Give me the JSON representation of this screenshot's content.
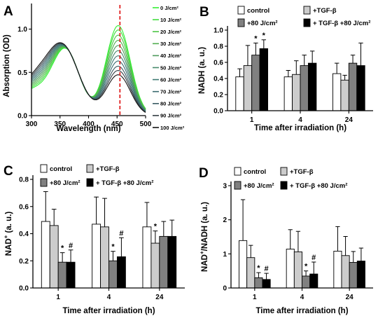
{
  "chart_data": [
    {
      "panel": "A",
      "type": "line",
      "xlabel": "Wavelength (nm)",
      "ylabel": "Absorption (OD)",
      "xlim": [
        300,
        500
      ],
      "ylim": [
        0,
        1.15
      ],
      "xticks": [
        300,
        350,
        400,
        450,
        500
      ],
      "yticks": [
        0.0,
        0.5,
        1.0
      ],
      "ytick_labels": [
        "0.0",
        "0.5",
        "1.0"
      ],
      "marker_line": {
        "x": 455,
        "color": "#e02020",
        "style": "dashed"
      },
      "peak1": {
        "x": 355,
        "y": 0.78
      },
      "peak2_position": 452,
      "peak2_amplitudes": [
        1.04,
        0.99,
        0.93,
        0.87,
        0.81,
        0.75,
        0.69,
        0.63,
        0.57,
        0.52,
        0.47
      ],
      "series": [
        {
          "name": "0 J/cm²",
          "color": "#33ee33"
        },
        {
          "name": "10 J/cm²",
          "color": "#40dc3c"
        },
        {
          "name": "20 J/cm²",
          "color": "#4cc545"
        },
        {
          "name": "30 J/cm²",
          "color": "#52ae50"
        },
        {
          "name": "40 J/cm²",
          "color": "#4f9b5c"
        },
        {
          "name": "50 J/cm²",
          "color": "#468a6b"
        },
        {
          "name": "60 J/cm²",
          "color": "#3f7a73"
        },
        {
          "name": "70 J/cm²",
          "color": "#3b6b70"
        },
        {
          "name": "80 J/cm²",
          "color": "#3a5b63"
        },
        {
          "name": "90 J/cm²",
          "color": "#333e44"
        },
        {
          "name": "100 J/cm²",
          "color": "#141414"
        }
      ]
    },
    {
      "panel": "B",
      "type": "bar",
      "ylabel": "NADH (a. u.)",
      "xlabel": "Time after irradiation (h)",
      "categories": [
        "1",
        "4",
        "24"
      ],
      "ylim": [
        0,
        1.0
      ],
      "yticks": [
        0,
        0.2,
        0.4,
        0.6,
        0.8,
        1.0
      ],
      "ytick_labels": [
        "0.0",
        "0.2",
        "0.4",
        "0.6",
        "0.8",
        "1.0"
      ],
      "series": [
        {
          "name": "control",
          "color": "#ffffff",
          "values": [
            0.42,
            0.42,
            0.46
          ],
          "errors": [
            0.1,
            0.08,
            0.13
          ]
        },
        {
          "name": "+TGF-β",
          "color": "#cccccc",
          "values": [
            0.56,
            0.45,
            0.38
          ],
          "errors": [
            0.25,
            0.17,
            0.06
          ]
        },
        {
          "name": "+80 J/cm²",
          "color": "#808080",
          "values": [
            0.69,
            0.56,
            0.59
          ],
          "errors": [
            0.15,
            0.13,
            0.1
          ]
        },
        {
          "name": "+ TGF-β +80 J/cm²",
          "color": "#000000",
          "values": [
            0.77,
            0.59,
            0.56
          ],
          "errors": [
            0.11,
            0.15,
            0.28
          ]
        }
      ],
      "annotations": [
        {
          "category": 0,
          "series": 2,
          "text": "*"
        },
        {
          "category": 0,
          "series": 3,
          "text": "*"
        }
      ]
    },
    {
      "panel": "C",
      "type": "bar",
      "ylabel": "NAD+ (a. u.)",
      "ylabel_main": "NAD",
      "ylabel_super": "+",
      "ylabel_rest": " (a. u.)",
      "xlabel": "Time after irradiation (h)",
      "categories": [
        "1",
        "4",
        "24"
      ],
      "ylim": [
        0,
        0.8
      ],
      "yticks": [
        0,
        0.2,
        0.4,
        0.6,
        0.8
      ],
      "ytick_labels": [
        "0.0",
        "0.2",
        "0.4",
        "0.6",
        "0.8"
      ],
      "series": [
        {
          "name": "control",
          "color": "#ffffff",
          "values": [
            0.49,
            0.47,
            0.45
          ],
          "errors": [
            0.22,
            0.2,
            0.18
          ]
        },
        {
          "name": "+TGF-β",
          "color": "#cccccc",
          "values": [
            0.46,
            0.45,
            0.33
          ],
          "errors": [
            0.12,
            0.21,
            0.09
          ]
        },
        {
          "name": "+80 J/cm²",
          "color": "#808080",
          "values": [
            0.19,
            0.2,
            0.38
          ],
          "errors": [
            0.07,
            0.07,
            0.11
          ]
        },
        {
          "name": "+ TGF-β +80 J/cm²",
          "color": "#000000",
          "values": [
            0.19,
            0.23,
            0.38
          ],
          "errors": [
            0.09,
            0.14,
            0.12
          ]
        }
      ],
      "annotations": [
        {
          "category": 0,
          "series": 2,
          "text": "*"
        },
        {
          "category": 0,
          "series": 3,
          "text": "#"
        },
        {
          "category": 1,
          "series": 2,
          "text": "*"
        },
        {
          "category": 1,
          "series": 3,
          "text": "#"
        },
        {
          "category": 2,
          "series": 1,
          "text": "*"
        }
      ]
    },
    {
      "panel": "D",
      "type": "bar",
      "ylabel": "NAD+/NADH (a. u.)",
      "ylabel_main": "NAD",
      "ylabel_super": "+",
      "ylabel_rest": "/NADH (a. u.)",
      "xlabel": "Time after irradiation (h)",
      "categories": [
        "1",
        "4",
        "24"
      ],
      "ylim": [
        0,
        3
      ],
      "yticks": [
        0,
        1,
        2,
        3
      ],
      "ytick_labels": [
        "0",
        "1",
        "2",
        "3"
      ],
      "series": [
        {
          "name": "control",
          "color": "#ffffff",
          "values": [
            1.39,
            1.14,
            1.08
          ],
          "errors": [
            1.2,
            0.57,
            0.72
          ]
        },
        {
          "name": "+TGF-β",
          "color": "#cccccc",
          "values": [
            0.89,
            1.06,
            0.95
          ],
          "errors": [
            0.36,
            0.6,
            0.56
          ]
        },
        {
          "name": "+80 J/cm²",
          "color": "#808080",
          "values": [
            0.3,
            0.35,
            0.75
          ],
          "errors": [
            0.15,
            0.15,
            0.32
          ]
        },
        {
          "name": "+ TGF-β +80 J/cm²",
          "color": "#000000",
          "values": [
            0.25,
            0.41,
            0.79
          ],
          "errors": [
            0.18,
            0.35,
            0.38
          ]
        }
      ],
      "annotations": [
        {
          "category": 0,
          "series": 2,
          "text": "*"
        },
        {
          "category": 0,
          "series": 3,
          "text": "#"
        },
        {
          "category": 1,
          "series": 2,
          "text": "*"
        },
        {
          "category": 1,
          "series": 3,
          "text": "#"
        }
      ]
    }
  ]
}
